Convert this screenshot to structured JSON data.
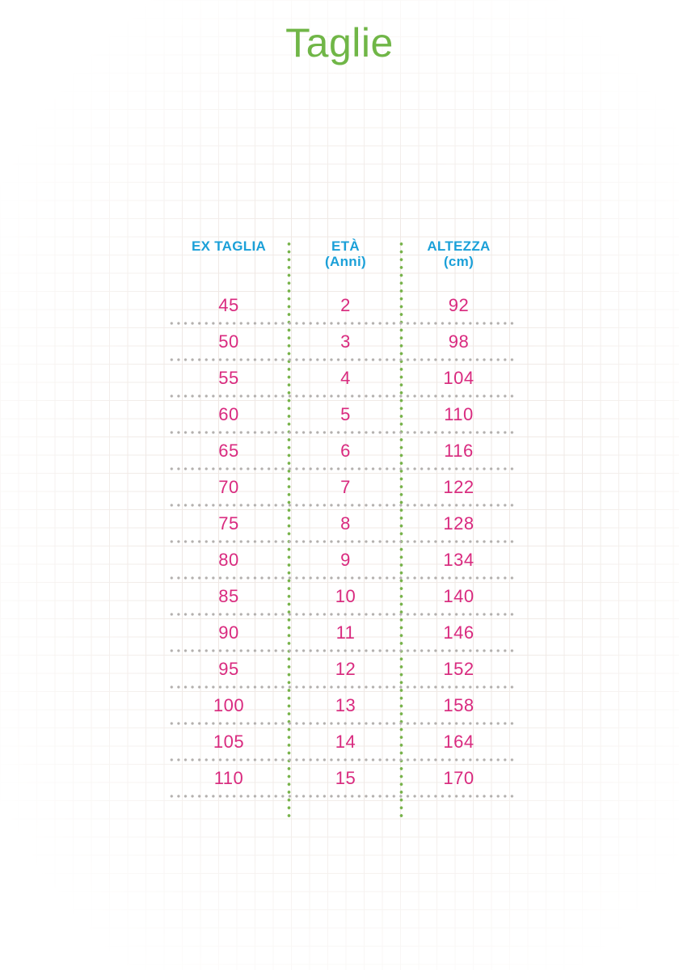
{
  "title": "Taglie",
  "table": {
    "headers": [
      {
        "line1": "EX TAGLIA",
        "line2": ""
      },
      {
        "line1": "ETÀ",
        "line2": "(Anni)"
      },
      {
        "line1": "ALTEZZA",
        "line2": "(cm)"
      }
    ],
    "rows": [
      {
        "ex_taglia": "45",
        "eta": "2",
        "altezza": "92"
      },
      {
        "ex_taglia": "50",
        "eta": "3",
        "altezza": "98"
      },
      {
        "ex_taglia": "55",
        "eta": "4",
        "altezza": "104"
      },
      {
        "ex_taglia": "60",
        "eta": "5",
        "altezza": "110"
      },
      {
        "ex_taglia": "65",
        "eta": "6",
        "altezza": "116"
      },
      {
        "ex_taglia": "70",
        "eta": "7",
        "altezza": "122"
      },
      {
        "ex_taglia": "75",
        "eta": "8",
        "altezza": "128"
      },
      {
        "ex_taglia": "80",
        "eta": "9",
        "altezza": "134"
      },
      {
        "ex_taglia": "85",
        "eta": "10",
        "altezza": "140"
      },
      {
        "ex_taglia": "90",
        "eta": "11",
        "altezza": "146"
      },
      {
        "ex_taglia": "95",
        "eta": "12",
        "altezza": "152"
      },
      {
        "ex_taglia": "100",
        "eta": "13",
        "altezza": "158"
      },
      {
        "ex_taglia": "105",
        "eta": "14",
        "altezza": "164"
      },
      {
        "ex_taglia": "110",
        "eta": "15",
        "altezza": "170"
      }
    ]
  },
  "colors": {
    "title_green": "#70b647",
    "header_blue": "#1ba0d8",
    "value_magenta": "#d92a7f",
    "divider_green": "#77b34a",
    "divider_gray": "#b3b0ae",
    "grid_line": "#efe8e4"
  },
  "chart_data": {
    "type": "table",
    "title": "Taglie",
    "columns": [
      "EX TAGLIA",
      "ETÀ (Anni)",
      "ALTEZZA (cm)"
    ],
    "rows": [
      [
        45,
        2,
        92
      ],
      [
        50,
        3,
        98
      ],
      [
        55,
        4,
        104
      ],
      [
        60,
        5,
        110
      ],
      [
        65,
        6,
        116
      ],
      [
        70,
        7,
        122
      ],
      [
        75,
        8,
        128
      ],
      [
        80,
        9,
        134
      ],
      [
        85,
        10,
        140
      ],
      [
        90,
        11,
        146
      ],
      [
        95,
        12,
        152
      ],
      [
        100,
        13,
        158
      ],
      [
        105,
        14,
        164
      ],
      [
        110,
        15,
        170
      ]
    ]
  }
}
